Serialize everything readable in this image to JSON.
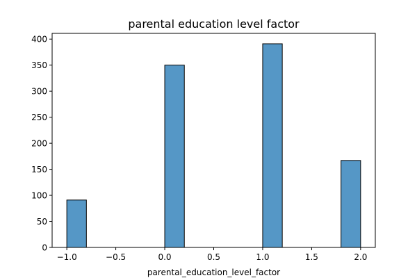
{
  "chart_data": {
    "type": "bar",
    "title": "parental education level factor",
    "xlabel": "parental_education_level_factor",
    "ylabel": "",
    "bars": [
      {
        "x0": -1.0,
        "x1": -0.8,
        "value": 91
      },
      {
        "x0": 0.0,
        "x1": 0.2,
        "value": 350
      },
      {
        "x0": 1.0,
        "x1": 1.2,
        "value": 391
      },
      {
        "x0": 1.8,
        "x1": 2.0,
        "value": 167
      }
    ],
    "xlim": [
      -1.15,
      2.15
    ],
    "ylim": [
      0,
      411
    ],
    "xticks": [
      -1.0,
      -0.5,
      0.0,
      0.5,
      1.0,
      1.5,
      2.0
    ],
    "xtick_labels": [
      "−1.0",
      "−0.5",
      "0.0",
      "0.5",
      "1.0",
      "1.5",
      "2.0"
    ],
    "yticks": [
      0,
      50,
      100,
      150,
      200,
      250,
      300,
      350,
      400
    ],
    "ytick_labels": [
      "0",
      "50",
      "100",
      "150",
      "200",
      "250",
      "300",
      "350",
      "400"
    ],
    "grid": false,
    "bar_color": "#5597c6",
    "edge_color": "#000000"
  }
}
